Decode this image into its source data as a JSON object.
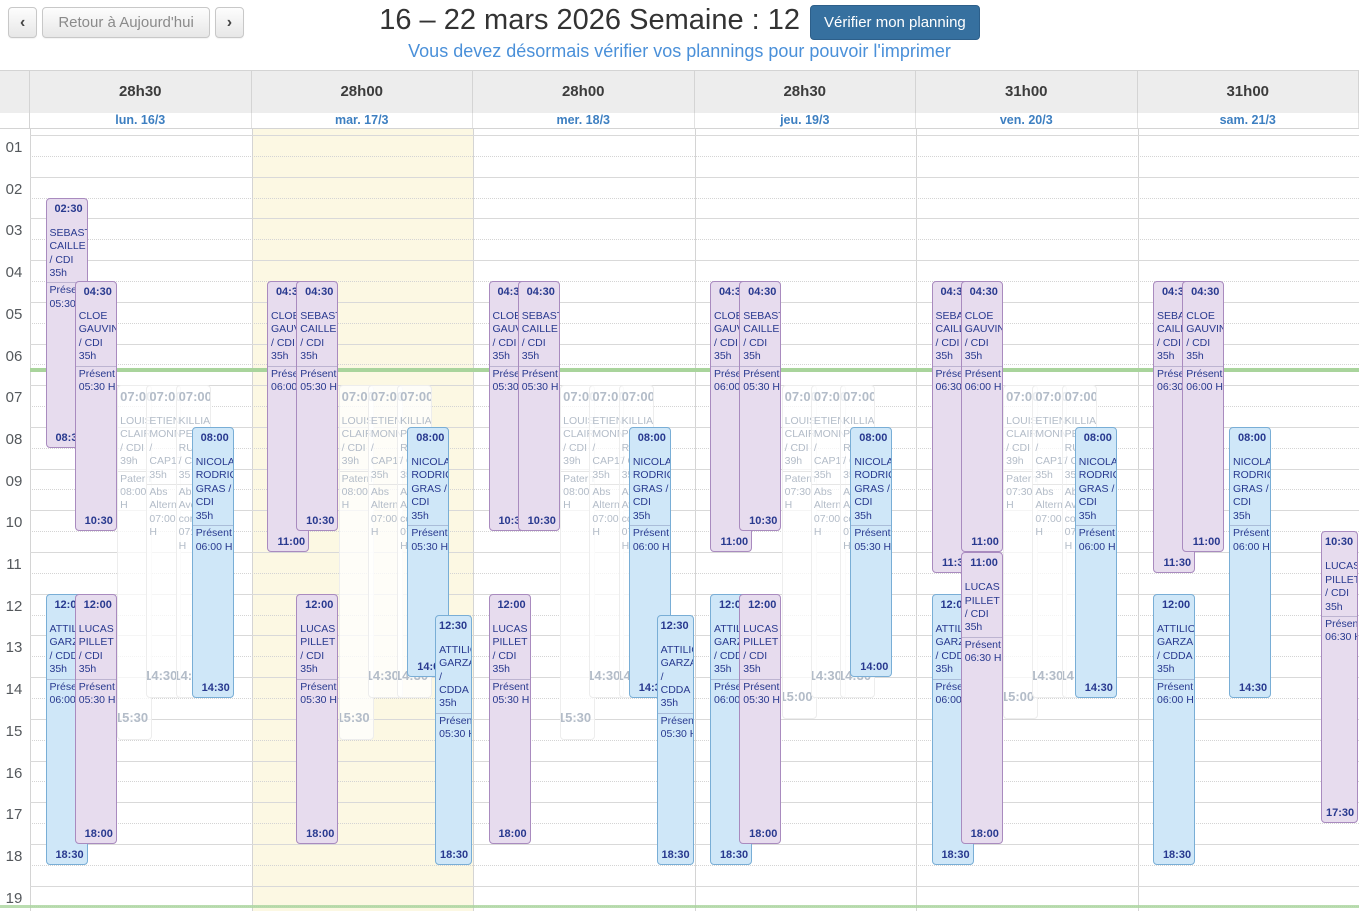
{
  "header": {
    "nav_prev": "‹",
    "nav_today": "Retour à Aujourd'hui",
    "nav_next": "›",
    "title": "16 – 22 mars 2026 Semaine : 12",
    "verify_button": "Vérifier mon planning",
    "subtitle": "Vous devez désormais vérifier vos plannings pour pouvoir l'imprimer"
  },
  "colors": {
    "verify_btn_bg": "#36709f",
    "subtitle_color": "#4a90d9",
    "day_label_color": "#3d7fc1",
    "today_bg": "#fcf8e3",
    "now_line_color": "#a9d49c",
    "event_purple_bg": "#e7dcee",
    "event_purple_border": "#a98bbf",
    "event_blue_bg": "#cfe7f8",
    "event_blue_border": "#79aed6",
    "event_text": "#28398f",
    "faded_text": "#b3bcc8"
  },
  "time_axis": {
    "hours": [
      "01",
      "02",
      "03",
      "04",
      "05",
      "06",
      "07",
      "08",
      "09",
      "10",
      "11",
      "12",
      "13",
      "14",
      "15",
      "16",
      "17",
      "18",
      "19"
    ]
  },
  "current_time_indicator": "06:35",
  "days": [
    {
      "total": "28h30",
      "label": "lun. 16/3",
      "today": false,
      "events": [
        {
          "start": "02:30",
          "end": "08:30",
          "name": "SEBASTIEN CAILLE / CDI 35h",
          "status": "Présent",
          "hours": "05:30 H",
          "type": "purple",
          "slot": 0
        },
        {
          "start": "04:30",
          "end": "10:30",
          "name": "CLOE GAUVIN / CDI 35h",
          "status": "Présent",
          "hours": "05:30 H",
          "type": "purple",
          "slot": 1
        },
        {
          "start": "07:00",
          "end": "15:30",
          "name_lines": [
            "LOUISE",
            "CLAIR",
            "/ CDI",
            "39h"
          ],
          "status_lines": [
            "Patern",
            "08:00",
            "H"
          ],
          "type": "faded",
          "slot": 2.45
        },
        {
          "start": "07:00",
          "end": "14:30",
          "name_lines": [
            "ETIENNE",
            "MONNIER",
            "/",
            "CAP17",
            "35h"
          ],
          "status_lines": [
            "Abs",
            "Altern",
            "07:00",
            "H"
          ],
          "type": "faded",
          "slot": 3.45
        },
        {
          "start": "07:00",
          "end": "14:30",
          "name_lines": [
            "KILLIAN",
            "PE",
            "RU",
            "/ C",
            "35"
          ],
          "status_lines": [
            "Abs",
            "Avec",
            "congé",
            "07:00",
            "H"
          ],
          "type": "faded",
          "slot": 4.45
        },
        {
          "start": "08:00",
          "end": "14:30",
          "name": "NICOLAS RODRIGUES GRAS / CDI 35h",
          "status": "Présent",
          "hours": "06:00 H",
          "type": "blue",
          "slot": 5
        },
        {
          "start": "12:00",
          "end": "18:30",
          "name": "ATTILIO GARZAN / CDDA 35h",
          "status": "Présent",
          "hours": "06:00 H",
          "type": "blue",
          "slot": 0
        },
        {
          "start": "12:00",
          "end": "18:00",
          "name": "LUCAS PILLET / CDI 35h",
          "status": "Présent",
          "hours": "05:30 H",
          "type": "purple",
          "slot": 1
        }
      ]
    },
    {
      "total": "28h00",
      "label": "mar. 17/3",
      "today": true,
      "events": [
        {
          "start": "04:30",
          "end": "11:00",
          "name": "CLOE GAUVIN / CDI 35h",
          "status": "Présent",
          "hours": "06:00 H",
          "type": "purple",
          "slot": 0
        },
        {
          "start": "04:30",
          "end": "10:30",
          "name": "SEBASTIEN CAILLE / CDI 35h",
          "status": "Présent",
          "hours": "05:30 H",
          "type": "purple",
          "slot": 1
        },
        {
          "start": "07:00",
          "end": "15:30",
          "name_lines": [
            "LOUISE",
            "CLAIR",
            "/ CDI",
            "39h"
          ],
          "status_lines": [
            "Patern",
            "08:00",
            "H"
          ],
          "type": "faded",
          "slot": 2.45
        },
        {
          "start": "07:00",
          "end": "14:30",
          "name_lines": [
            "ETIENNE",
            "MONNIER",
            "/",
            "CAP17",
            "35h"
          ],
          "status_lines": [
            "Abs",
            "Altern",
            "07:00",
            "H"
          ],
          "type": "faded",
          "slot": 3.45
        },
        {
          "start": "07:00",
          "end": "14:30",
          "name_lines": [
            "KILLIAN",
            "PE",
            "RU",
            "/ C",
            "35"
          ],
          "status_lines": [
            "Abs",
            "Avec",
            "congé",
            "07:00",
            "H"
          ],
          "type": "faded",
          "slot": 4.45
        },
        {
          "start": "08:00",
          "end": "14:00",
          "name": "NICOLAS RODRIGUES GRAS / CDI 35h",
          "status": "Présent",
          "hours": "05:30 H",
          "type": "blue",
          "slot": 4.8
        },
        {
          "start": "12:00",
          "end": "18:00",
          "name": "LUCAS PILLET / CDI 35h",
          "status": "Présent",
          "hours": "05:30 H",
          "type": "purple",
          "slot": 1
        },
        {
          "start": "12:30",
          "end": "18:30",
          "name": "ATTILIO GARZAN / CDDA 35h",
          "status": "Présent",
          "hours": "05:30 H",
          "type": "blue",
          "slot": 5.75
        }
      ]
    },
    {
      "total": "28h00",
      "label": "mer. 18/3",
      "today": false,
      "events": [
        {
          "start": "04:30",
          "end": "10:30",
          "name": "CLOE GAUVIN / CDI 35h",
          "status": "Présent",
          "hours": "05:30 H",
          "type": "purple",
          "slot": 0
        },
        {
          "start": "04:30",
          "end": "10:30",
          "name": "SEBASTIEN CAILLE / CDI 35h",
          "status": "Présent",
          "hours": "05:30 H",
          "type": "purple",
          "slot": 1
        },
        {
          "start": "07:00",
          "end": "15:30",
          "name_lines": [
            "LOUISE",
            "CLAIR",
            "/ CDI",
            "39h"
          ],
          "status_lines": [
            "Patern",
            "08:00",
            "H"
          ],
          "type": "faded",
          "slot": 2.45
        },
        {
          "start": "07:00",
          "end": "14:30",
          "name_lines": [
            "ETIENNE",
            "MONNIER",
            "/",
            "CAP17",
            "35h"
          ],
          "status_lines": [
            "Abs",
            "Altern",
            "07:00",
            "H"
          ],
          "type": "faded",
          "slot": 3.45
        },
        {
          "start": "07:00",
          "end": "14:30",
          "name_lines": [
            "KILLIAN",
            "PE",
            "RU",
            "/ C",
            "35"
          ],
          "status_lines": [
            "Abs",
            "Avec",
            "congé",
            "07:00",
            "H"
          ],
          "type": "faded",
          "slot": 4.45
        },
        {
          "start": "08:00",
          "end": "14:30",
          "name": "NICOLAS RODRIGUES GRAS / CDI 35h",
          "status": "Présent",
          "hours": "06:00 H",
          "type": "blue",
          "slot": 4.8
        },
        {
          "start": "12:00",
          "end": "18:00",
          "name": "LUCAS PILLET / CDI 35h",
          "status": "Présent",
          "hours": "05:30 H",
          "type": "purple",
          "slot": 0
        },
        {
          "start": "12:30",
          "end": "18:30",
          "name": "ATTILIO GARZAN / CDDA 35h",
          "status": "Présent",
          "hours": "05:30 H",
          "type": "blue",
          "slot": 5.75
        }
      ]
    },
    {
      "total": "28h30",
      "label": "jeu. 19/3",
      "today": false,
      "events": [
        {
          "start": "04:30",
          "end": "11:00",
          "name": "CLOE GAUVIN / CDI 35h",
          "status": "Présent",
          "hours": "06:00 H",
          "type": "purple",
          "slot": 0
        },
        {
          "start": "04:30",
          "end": "10:30",
          "name": "SEBASTIEN CAILLE / CDI 35h",
          "status": "Présent",
          "hours": "05:30 H",
          "type": "purple",
          "slot": 1
        },
        {
          "start": "07:00",
          "end": "15:00",
          "name_lines": [
            "LOUISE",
            "CLAIR",
            "/ CDI",
            "39h"
          ],
          "status_lines": [
            "Patern",
            "07:30",
            "H"
          ],
          "type": "faded",
          "slot": 2.45
        },
        {
          "start": "07:00",
          "end": "14:30",
          "name_lines": [
            "ETIENNE",
            "MONNIER",
            "/",
            "CAP17",
            "35h"
          ],
          "status_lines": [
            "Abs",
            "Altern",
            "07:00",
            "H"
          ],
          "type": "faded",
          "slot": 3.45
        },
        {
          "start": "07:00",
          "end": "14:30",
          "name_lines": [
            "KILLIAN",
            "PE",
            "RU",
            "/ C",
            "35"
          ],
          "status_lines": [
            "Abs",
            "Avec",
            "congé",
            "07:00",
            "H"
          ],
          "type": "faded",
          "slot": 4.45
        },
        {
          "start": "08:00",
          "end": "14:00",
          "name": "NICOLAS RODRIGUES GRAS / CDI 35h",
          "status": "Présent",
          "hours": "05:30 H",
          "type": "blue",
          "slot": 4.8
        },
        {
          "start": "12:00",
          "end": "18:30",
          "name": "ATTILIO GARZAN / CDDA 35h",
          "status": "Présent",
          "hours": "06:00 H",
          "type": "blue",
          "slot": 0
        },
        {
          "start": "12:00",
          "end": "18:00",
          "name": "LUCAS PILLET / CDI 35h",
          "status": "Présent",
          "hours": "05:30 H",
          "type": "purple",
          "slot": 1
        }
      ]
    },
    {
      "total": "31h00",
      "label": "ven. 20/3",
      "today": false,
      "events": [
        {
          "start": "04:30",
          "end": "11:30",
          "name": "SEBASTIEN CAILLE / CDI 35h",
          "status": "Présent",
          "hours": "06:30 H",
          "type": "purple",
          "slot": 0
        },
        {
          "start": "04:30",
          "end": "11:00",
          "name": "CLOE GAUVIN / CDI 35h",
          "status": "Présent",
          "hours": "06:00 H",
          "type": "purple",
          "slot": 1
        },
        {
          "start": "07:00",
          "end": "15:00",
          "name_lines": [
            "LOUISE",
            "CLAIR",
            "/ CDI",
            "39h"
          ],
          "status_lines": [
            "Patern",
            "07:30",
            "H"
          ],
          "type": "faded",
          "slot": 2.45
        },
        {
          "start": "07:00",
          "end": "14:30",
          "name_lines": [
            "ETIENNE",
            "MONNIER",
            "/",
            "CAP17",
            "35h"
          ],
          "status_lines": [
            "Abs",
            "Altern",
            "07:00",
            "H"
          ],
          "type": "faded",
          "slot": 3.45
        },
        {
          "start": "07:00",
          "end": "14:30",
          "name_lines": [
            "KILLIAN",
            "PE",
            "RU",
            "/ C",
            "35"
          ],
          "status_lines": [
            "Abs",
            "Avec",
            "congé",
            "07:00",
            "H"
          ],
          "type": "faded",
          "slot": 4.45
        },
        {
          "start": "08:00",
          "end": "14:30",
          "name": "NICOLAS RODRIGUES GRAS / CDI 35h",
          "status": "Présent",
          "hours": "06:00 H",
          "type": "blue",
          "slot": 4.9
        },
        {
          "start": "11:00",
          "end": "18:00",
          "name": "LUCAS PILLET / CDI 35h",
          "status": "Présent",
          "hours": "06:30 H",
          "type": "purple",
          "slot": 1
        },
        {
          "start": "12:00",
          "end": "18:30",
          "name": "ATTILIO GARZAN / CDDA 35h",
          "status": "Présent",
          "hours": "06:00 H",
          "type": "blue",
          "slot": 0
        }
      ]
    },
    {
      "total": "31h00",
      "label": "sam. 21/3",
      "today": false,
      "events": [
        {
          "start": "04:30",
          "end": "11:30",
          "name": "SEBASTIEN CAILLE / CDI 35h",
          "status": "Présent",
          "hours": "06:30 H",
          "type": "purple",
          "slot": 0
        },
        {
          "start": "04:30",
          "end": "11:00",
          "name": "CLOE GAUVIN / CDI 35h",
          "status": "Présent",
          "hours": "06:00 H",
          "type": "purple",
          "slot": 1
        },
        {
          "start": "08:00",
          "end": "14:30",
          "name": "NICOLAS RODRIGUES GRAS / CDI 35h",
          "status": "Présent",
          "hours": "06:00 H",
          "type": "blue",
          "slot": 2.6
        },
        {
          "start": "10:30",
          "end": "17:30",
          "name": "LUCAS PILLET / CDI 35h",
          "status": "Présent",
          "hours": "06:30 H",
          "type": "purple",
          "slot": 5.75
        },
        {
          "start": "12:00",
          "end": "18:30",
          "name": "ATTILIO GARZAN / CDDA 35h",
          "status": "Présent",
          "hours": "06:00 H",
          "type": "blue",
          "slot": 0
        }
      ]
    }
  ]
}
